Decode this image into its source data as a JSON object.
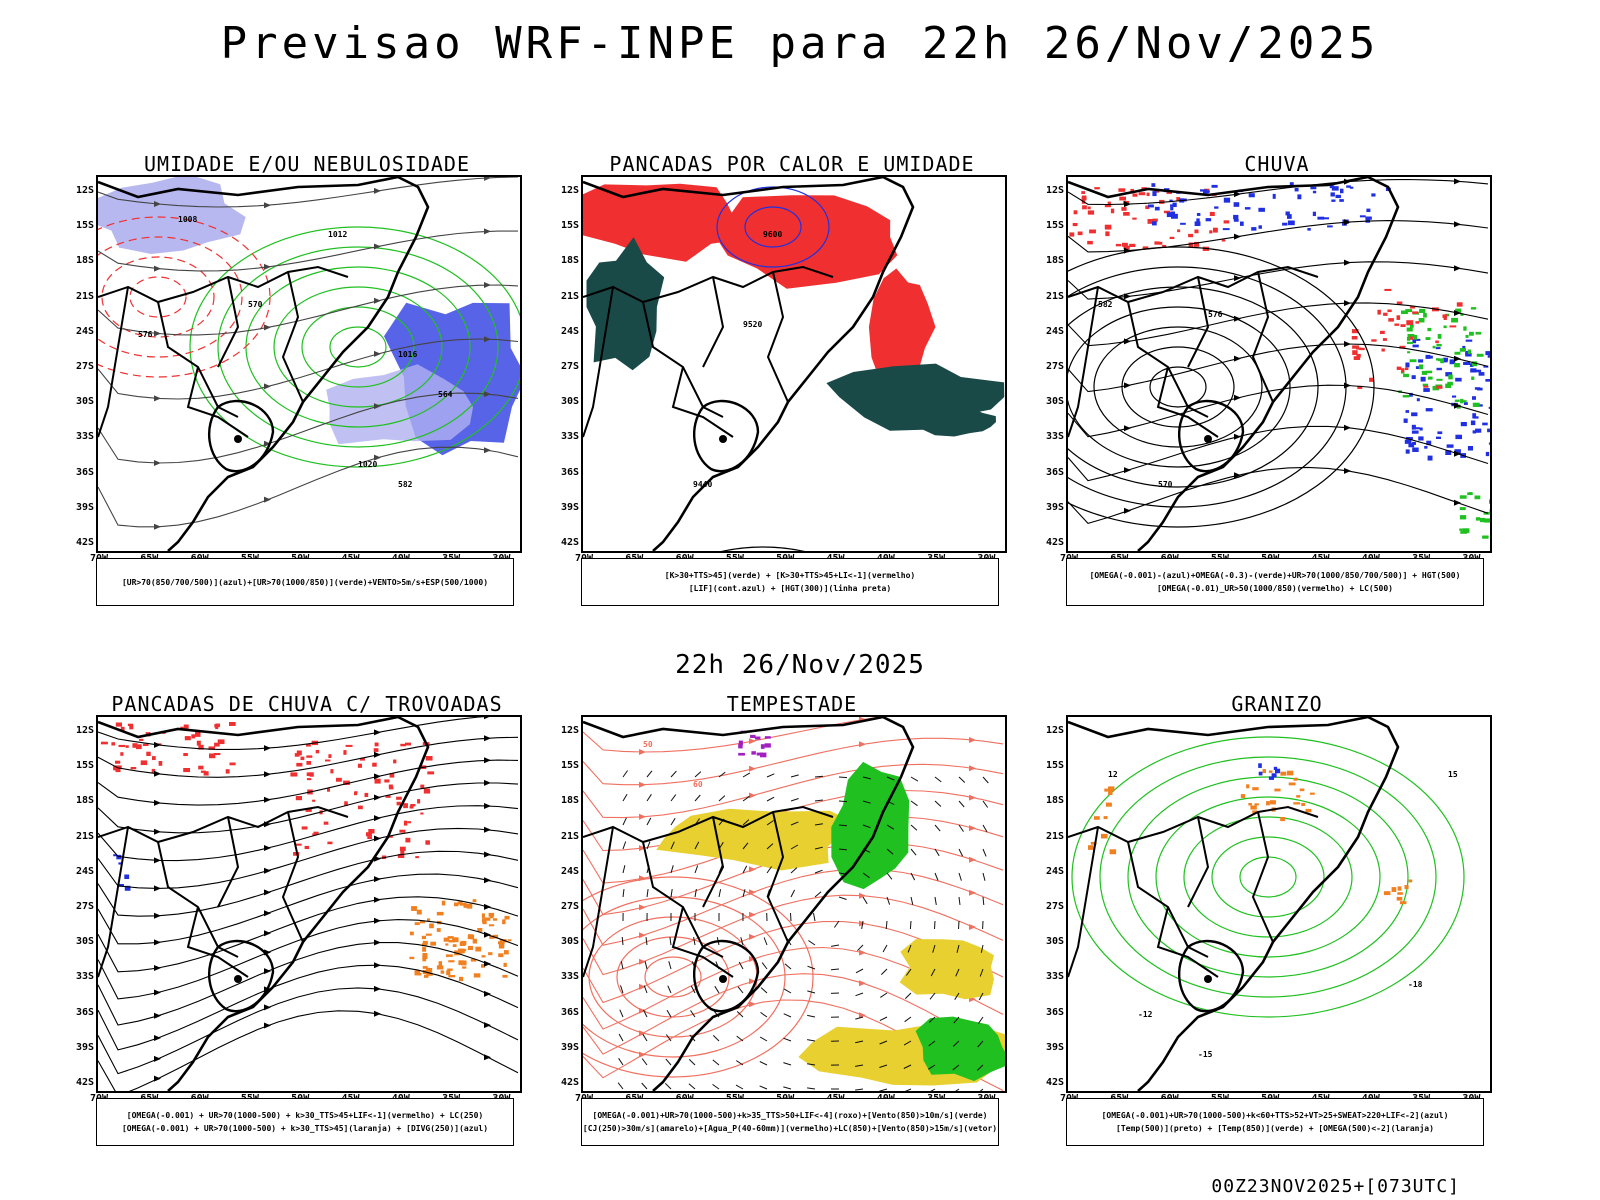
{
  "header": {
    "title": "Previsao WRF-INPE  para 22h 26/Nov/2025"
  },
  "mid_label": "22h 26/Nov/2025",
  "footer": {
    "run": "00Z23NOV2025+[073UTC]"
  },
  "axes": {
    "lat_labels": [
      "12S",
      "15S",
      "18S",
      "21S",
      "24S",
      "27S",
      "30S",
      "33S",
      "36S",
      "39S",
      "42S"
    ],
    "lon_labels": [
      "70W",
      "65W",
      "60W",
      "55W",
      "50W",
      "45W",
      "40W",
      "35W",
      "30W"
    ]
  },
  "panels": [
    {
      "title": "UMIDADE E/OU NEBULOSIDADE",
      "legend": [
        "[UR>70(850/700/500)](azul)+[UR>70(1000/850)](verde)+VENTO>5m/s+ESP(500/1000)"
      ],
      "contour_labels": [
        "1008",
        "1012",
        "1016",
        "1020",
        "576",
        "570",
        "564",
        "582"
      ]
    },
    {
      "title": "PANCADAS POR CALOR E UMIDADE",
      "legend": [
        "[K>30+TTS>45](verde) + [K>30+TTS>45+LI<-1](vermelho)",
        "[LIF](cont.azul) + [HGT(300)](linha preta)"
      ],
      "contour_labels": [
        "9600",
        "9520",
        "9440"
      ]
    },
    {
      "title": "CHUVA",
      "legend": [
        "[OMEGA(-0.001)-(azul)+OMEGA(-0.3)-(verde)+UR>70(1000/850/700/500)] + HGT(500)",
        "[OMEGA(-0.01)_UR>50(1000/850)(vermelho) + LC(500)"
      ],
      "contour_labels": [
        "582",
        "576",
        "570"
      ]
    },
    {
      "title": "PANCADAS DE CHUVA C/ TROVOADAS",
      "legend": [
        "[OMEGA(-0.001) + UR>70(1000-500) + k>30_TTS>45+LIF<-1](vermelho) + LC(250)",
        "[OMEGA(-0.001) + UR>70(1000-500) + k>30_TTS>45](laranja) + [DIVG(250)](azul)"
      ],
      "contour_labels": []
    },
    {
      "title": "TEMPESTADE",
      "legend": [
        "[OMEGA(-0.001)+UR>70(1000-500)+k>35_TTS>50+LIF<-4](roxo)+[Vento(850)>10m/s](verde)",
        "[CJ(250)>30m/s](amarelo)+[Agua_P(40-60mm)](vermelho)+LC(850)+[Vento(850)>15m/s](vetor)"
      ],
      "contour_labels": [
        "50",
        "60"
      ]
    },
    {
      "title": "GRANIZO",
      "legend": [
        "[OMEGA(-0.001)+UR>70(1000-500)+k<60+TTS>52+VT>25+SWEAT>220+LIF<-2](azul)",
        "[Temp(500)](preto) + [Temp(850)](verde) + [OMEGA(500)<-2](laranja)"
      ],
      "contour_labels": [
        "-12",
        "-15",
        "-18",
        "12",
        "15"
      ]
    }
  ],
  "colors": {
    "blue": "#2030e0",
    "lavender": "#b0b0f0",
    "green": "#20c020",
    "red": "#f03030",
    "darkteal": "#1a4a48",
    "orange": "#f08020",
    "yellow": "#e8d030",
    "salmon": "#f07060",
    "purple": "#a020c0"
  }
}
